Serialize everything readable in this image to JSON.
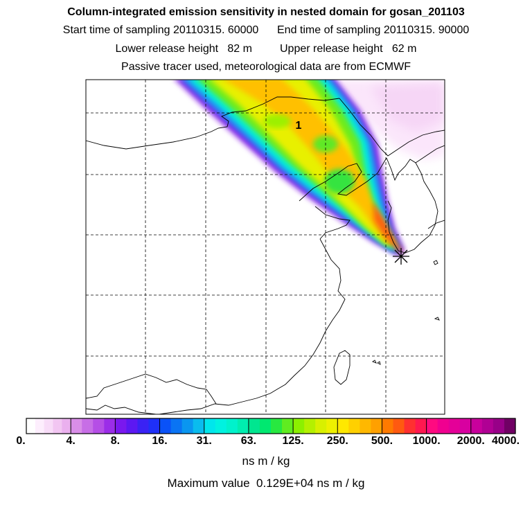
{
  "header": {
    "title": "Column-integrated emission sensitivity in nested domain for gosan_201103",
    "start_label": "Start time of sampling 20110315. 60000",
    "end_label": "End time of sampling 20110315. 90000",
    "lower_label": "Lower release height   82 m",
    "upper_label": "Upper release height   62 m",
    "tracer_label": "Passive tracer used, meteorological data are from ECMWF"
  },
  "map": {
    "annotation_marker": "1",
    "release_marker": "release-site-star-icon"
  },
  "colorbar": {
    "tick_labels": [
      "0.",
      "4.",
      "8.",
      "16.",
      "31.",
      "63.",
      "125.",
      "250.",
      "500.",
      "1000.",
      "2000.",
      "4000."
    ],
    "colors": [
      "#ffffff",
      "#fdeefd",
      "#f8dcf8",
      "#f2c6f2",
      "#eab0ee",
      "#d98ee8",
      "#c76ee6",
      "#b54ee6",
      "#9b2de8",
      "#7a18ee",
      "#5c18f2",
      "#3a22f4",
      "#1f30f8",
      "#0a52f8",
      "#0a74f4",
      "#0a96f0",
      "#0abcee",
      "#00e6ec",
      "#00f2e0",
      "#00f2cc",
      "#00eeb0",
      "#00e690",
      "#00e870",
      "#28e840",
      "#60ec20",
      "#8cf000",
      "#b4f000",
      "#d8f000",
      "#eef000",
      "#ffe800",
      "#ffd000",
      "#ffb800",
      "#ffa000",
      "#ff7a00",
      "#ff5a10",
      "#ff3030",
      "#ff1850",
      "#ff0a80",
      "#f00090",
      "#e40098",
      "#d800a0",
      "#c8009c",
      "#b00094",
      "#980088",
      "#700064"
    ],
    "units": "ns m / kg"
  },
  "footer": {
    "max_label": "Maximum value  0.129E+04 ns m / kg"
  }
}
